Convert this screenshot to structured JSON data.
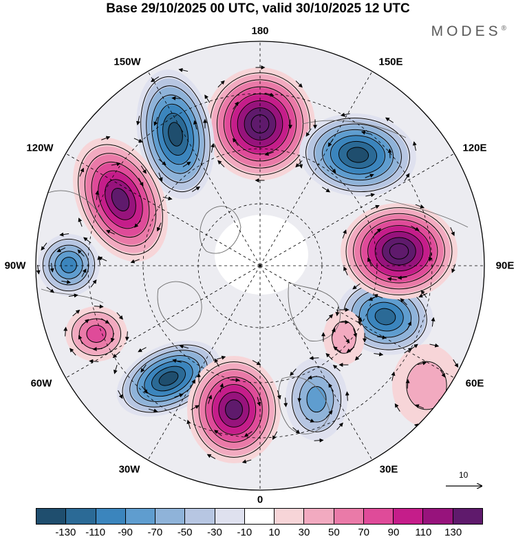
{
  "title": "Base 29/10/2025 00 UTC, valid 30/10/2025 12 UTC",
  "brand": "MODES",
  "brand_mark": "®",
  "longitude_labels": {
    "top": "180",
    "bottom": "0",
    "left": "90W",
    "right": "90E",
    "upper_left_1": "150W",
    "upper_left_2": "120W",
    "lower_left_1": "60W",
    "lower_left_2": "30W",
    "upper_right_1": "150E",
    "upper_right_2": "120E",
    "lower_right_1": "60E",
    "lower_right_2": "30E"
  },
  "vector_key": {
    "label": "10"
  },
  "colorbar": {
    "colors": [
      "#1f4e6e",
      "#2b6a96",
      "#3b85bd",
      "#5f9dcf",
      "#8fb3d9",
      "#b7c6e2",
      "#dfe1ef",
      "#ffffff",
      "#f7d5d8",
      "#f2aac0",
      "#ea7aa8",
      "#df4b99",
      "#c51d8a",
      "#97137c",
      "#5f1a6c"
    ],
    "ticks": [
      "-130",
      "-110",
      "-90",
      "-70",
      "-50",
      "-30",
      "-10",
      "10",
      "30",
      "50",
      "70",
      "90",
      "110",
      "130"
    ]
  },
  "chart_data": {
    "type": "map",
    "projection": "north polar stereographic",
    "field": "anomaly with wind vectors",
    "anomaly_centers": [
      {
        "name": "180-north",
        "sign": "positive",
        "peak": 130
      },
      {
        "name": "160W",
        "sign": "negative",
        "peak": -110
      },
      {
        "name": "120W",
        "sign": "positive",
        "peak": 110
      },
      {
        "name": "90W",
        "sign": "negative",
        "peak": -70
      },
      {
        "name": "75W",
        "sign": "positive",
        "peak": 50
      },
      {
        "name": "50W",
        "sign": "negative",
        "peak": -110
      },
      {
        "name": "20W",
        "sign": "positive",
        "peak": 110
      },
      {
        "name": "20E",
        "sign": "negative",
        "peak": -50
      },
      {
        "name": "70E",
        "sign": "negative",
        "peak": -90
      },
      {
        "name": "95E",
        "sign": "positive",
        "peak": 130
      },
      {
        "name": "135E",
        "sign": "negative",
        "peak": -110
      }
    ]
  }
}
